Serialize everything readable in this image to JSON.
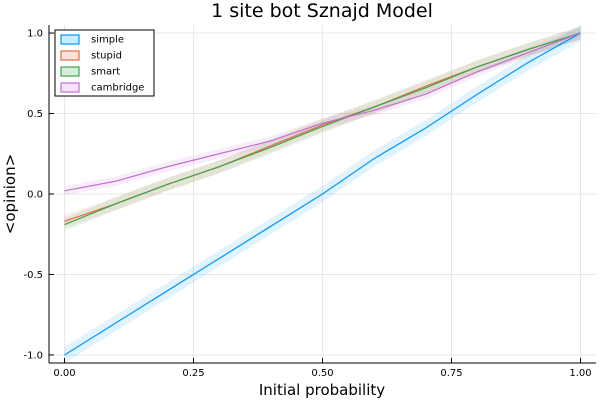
{
  "chart_data": {
    "type": "line",
    "title": "1 site bot Sznajd Model",
    "xlabel": "Initial probability",
    "ylabel": "<opinion>",
    "xlim": [
      -0.03,
      1.03
    ],
    "ylim": [
      -1.05,
      1.05
    ],
    "x_ticks": [
      0.0,
      0.25,
      0.5,
      0.75,
      1.0
    ],
    "x_tick_labels": [
      "0.00",
      "0.25",
      "0.50",
      "0.75",
      "1.00"
    ],
    "y_ticks": [
      -1.0,
      -0.5,
      0.0,
      0.5,
      1.0
    ],
    "y_tick_labels": [
      "-1.0",
      "-0.5",
      "0.0",
      "0.5",
      "1.0"
    ],
    "grid": true,
    "legend_position": "top-left",
    "x": [
      0.0,
      0.1,
      0.2,
      0.3,
      0.4,
      0.5,
      0.6,
      0.7,
      0.8,
      0.9,
      1.0
    ],
    "series": [
      {
        "name": "simple",
        "color": "#009af9",
        "values": [
          -1.0,
          -0.8,
          -0.6,
          -0.4,
          -0.2,
          0.0,
          0.22,
          0.41,
          0.62,
          0.82,
          1.0
        ],
        "band": 0.05
      },
      {
        "name": "stupid",
        "color": "#e26f46",
        "values": [
          -0.17,
          -0.06,
          0.06,
          0.17,
          0.3,
          0.43,
          0.54,
          0.67,
          0.79,
          0.9,
          1.0
        ],
        "band": 0.04
      },
      {
        "name": "smart",
        "color": "#3da44d",
        "values": [
          -0.19,
          -0.06,
          0.06,
          0.17,
          0.29,
          0.42,
          0.54,
          0.66,
          0.79,
          0.9,
          1.0
        ],
        "band": 0.04
      },
      {
        "name": "cambridge",
        "color": "#c271d2",
        "values": [
          0.02,
          0.08,
          0.17,
          0.25,
          0.33,
          0.44,
          0.52,
          0.62,
          0.76,
          0.88,
          1.0
        ],
        "band": 0.03
      }
    ]
  }
}
